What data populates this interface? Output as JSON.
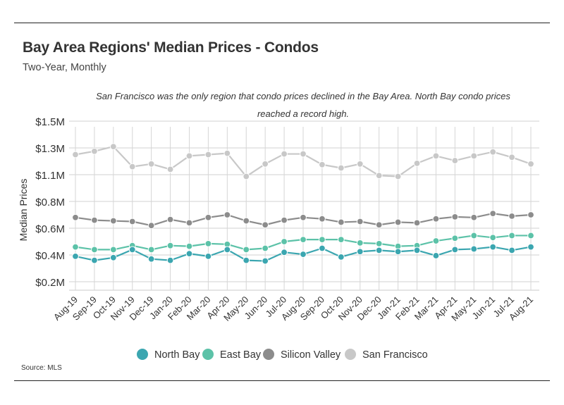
{
  "header": {
    "title": "Bay Area Regions' Median Prices - Condos",
    "subtitle": "Two-Year, Monthly",
    "annotation": "San Francisco was the only region that condo prices declined in the Bay Area. North Bay condo prices reached a record high.",
    "source": "Source:  MLS"
  },
  "chart_data": {
    "type": "line",
    "title": "Bay Area Regions' Median Prices - Condos",
    "subtitle": "Two-Year, Monthly",
    "ylabel": "Median Prices",
    "xlabel": "",
    "ylim": [
      0.15,
      1.5
    ],
    "y_ticks": [
      {
        "value": 0.2,
        "label": "$0.2M"
      },
      {
        "value": 0.4,
        "label": "$0.4M"
      },
      {
        "value": 0.6,
        "label": "$0.6M"
      },
      {
        "value": 0.8,
        "label": "$0.8M"
      },
      {
        "value": 1.1,
        "label": "$1.1M"
      },
      {
        "value": 1.3,
        "label": "$1.3M"
      },
      {
        "value": 1.5,
        "label": "$1.5M"
      }
    ],
    "grid": true,
    "legend_position": "bottom",
    "categories": [
      "Aug-19",
      "Sep-19",
      "Oct-19",
      "Nov-19",
      "Dec-19",
      "Jan-20",
      "Feb-20",
      "Mar-20",
      "Apr-20",
      "May-20",
      "Jun-20",
      "Jul-20",
      "Aug-20",
      "Sep-20",
      "Oct-20",
      "Nov-20",
      "Dec-20",
      "Jan-21",
      "Feb-21",
      "Mar-21",
      "Apr-21",
      "May-21",
      "Jun-21",
      "Jul-21",
      "Aug-21"
    ],
    "series": [
      {
        "name": "North Bay",
        "color": "#3ba6b0",
        "values": [
          0.39,
          0.36,
          0.38,
          0.44,
          0.37,
          0.36,
          0.41,
          0.39,
          0.44,
          0.36,
          0.355,
          0.42,
          0.405,
          0.45,
          0.385,
          0.425,
          0.435,
          0.425,
          0.435,
          0.395,
          0.44,
          0.445,
          0.46,
          0.435,
          0.46
        ]
      },
      {
        "name": "East Bay",
        "color": "#5cc2a8",
        "values": [
          0.46,
          0.44,
          0.44,
          0.47,
          0.44,
          0.47,
          0.465,
          0.485,
          0.48,
          0.44,
          0.45,
          0.5,
          0.515,
          0.515,
          0.515,
          0.49,
          0.485,
          0.465,
          0.47,
          0.505,
          0.525,
          0.545,
          0.53,
          0.545,
          0.545
        ]
      },
      {
        "name": "Silicon Valley",
        "color": "#8c8c8c",
        "values": [
          0.68,
          0.66,
          0.655,
          0.65,
          0.62,
          0.665,
          0.64,
          0.68,
          0.7,
          0.655,
          0.625,
          0.66,
          0.68,
          0.67,
          0.645,
          0.65,
          0.625,
          0.645,
          0.64,
          0.67,
          0.685,
          0.68,
          0.71,
          0.69,
          0.7
        ]
      },
      {
        "name": "San Francisco",
        "color": "#c8c8c8",
        "values": [
          1.25,
          1.275,
          1.31,
          1.16,
          1.18,
          1.14,
          1.24,
          1.25,
          1.26,
          1.08,
          1.18,
          1.255,
          1.255,
          1.175,
          1.15,
          1.18,
          1.09,
          1.08,
          1.185,
          1.24,
          1.205,
          1.24,
          1.27,
          1.23,
          1.18
        ]
      }
    ]
  }
}
